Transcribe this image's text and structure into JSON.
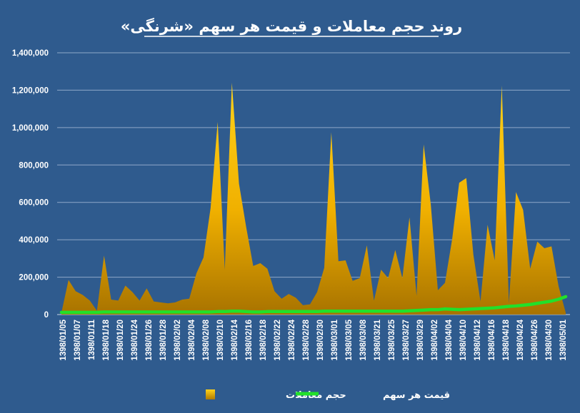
{
  "chart_data": {
    "type": "area",
    "title": "روند حجم معاملات و قیمت هر سهم «شرنگی»",
    "xlabel": "",
    "ylabel": "",
    "ylim": [
      0,
      1400000
    ],
    "yticks": [
      "1,400,000",
      "1,200,000",
      "1,000,000",
      "800,000",
      "600,000",
      "400,000",
      "200,000",
      "0"
    ],
    "ytick_values": [
      1400000,
      1200000,
      1000000,
      800000,
      600000,
      400000,
      200000,
      0
    ],
    "x_tick_labels": [
      "1398/01/05",
      "1398/01/07",
      "1398/01/11",
      "1398/01/18",
      "1398/01/20",
      "1398/01/24",
      "1398/01/26",
      "1398/01/28",
      "1398/02/02",
      "1398/02/04",
      "1398/02/08",
      "1398/02/10",
      "1398/02/14",
      "1398/02/16",
      "1398/02/18",
      "1398/02/22",
      "1398/02/24",
      "1398/02/28",
      "1398/02/30",
      "1398/03/01",
      "1398/03/05",
      "1398/03/08",
      "1398/03/21",
      "1398/03/25",
      "1398/03/27",
      "1398/03/29",
      "1398/04/02",
      "1398/04/04",
      "1398/04/10",
      "1398/04/12",
      "1398/04/16",
      "1398/04/18",
      "1398/04/24",
      "1398/04/26",
      "1398/04/30",
      "1398/05/01"
    ],
    "grid": true,
    "legend_position": "bottom",
    "series": [
      {
        "name": "حجم معاملات",
        "kind": "area",
        "color": "#f3b300",
        "values": [
          10000,
          185000,
          125000,
          105000,
          75000,
          20000,
          315000,
          80000,
          75000,
          155000,
          120000,
          75000,
          140000,
          70000,
          65000,
          60000,
          65000,
          80000,
          85000,
          220000,
          305000,
          570000,
          1030000,
          240000,
          1240000,
          700000,
          470000,
          260000,
          275000,
          245000,
          125000,
          85000,
          110000,
          90000,
          50000,
          55000,
          120000,
          250000,
          975000,
          285000,
          290000,
          180000,
          195000,
          370000,
          75000,
          240000,
          195000,
          345000,
          195000,
          520000,
          100000,
          910000,
          590000,
          130000,
          170000,
          400000,
          705000,
          730000,
          320000,
          70000,
          480000,
          290000,
          1225000,
          60000,
          655000,
          560000,
          245000,
          390000,
          355000,
          365000,
          150000,
          10000
        ]
      },
      {
        "name": "قیمت هر سهم",
        "kind": "line",
        "color": "#22e02a",
        "values": [
          12000,
          12000,
          12000,
          12000,
          12000,
          12000,
          14000,
          14000,
          14000,
          14000,
          14000,
          14000,
          14000,
          14000,
          14000,
          14000,
          14000,
          14000,
          14000,
          14000,
          14000,
          14000,
          16000,
          16000,
          18000,
          18000,
          16000,
          14000,
          14000,
          16000,
          16000,
          16000,
          16000,
          16000,
          16000,
          16000,
          16000,
          18000,
          18000,
          18000,
          18000,
          18000,
          18000,
          18000,
          18000,
          18000,
          18000,
          18000,
          18000,
          20000,
          22000,
          24000,
          26000,
          26000,
          30000,
          28000,
          26000,
          28000,
          30000,
          32000,
          34000,
          36000,
          40000,
          44000,
          46000,
          50000,
          54000,
          60000,
          66000,
          72000,
          82000,
          96000
        ]
      }
    ]
  }
}
